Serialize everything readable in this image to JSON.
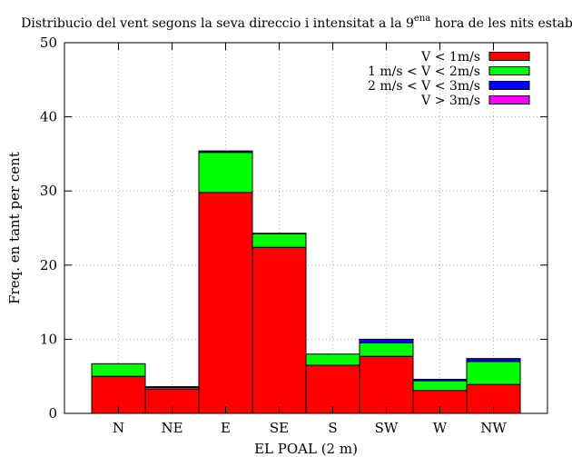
{
  "chart_data": {
    "type": "bar",
    "stacked": true,
    "title_main": "Distribucio del vent segons la seva direccio i intensitat a la 9",
    "title_sup": "ena",
    "title_tail": " hora de les nits estables",
    "xlabel": "EL POAL (2 m)",
    "ylabel": "Freq. en tant per cent",
    "ylim": [
      0,
      50
    ],
    "yticks": [
      0,
      10,
      20,
      30,
      40,
      50
    ],
    "grid": true,
    "legend_position": "top-right",
    "categories": [
      "N",
      "NE",
      "E",
      "SE",
      "S",
      "SW",
      "W",
      "NW"
    ],
    "series": [
      {
        "name": "V < 1m/s",
        "color": "#ff0000",
        "values": [
          5.0,
          3.3,
          29.8,
          22.4,
          6.5,
          7.7,
          3.1,
          3.9
        ]
      },
      {
        "name": "1 m/s < V < 2m/s",
        "color": "#00ff00",
        "values": [
          1.7,
          0.2,
          5.4,
          1.8,
          1.5,
          1.8,
          1.3,
          3.1
        ]
      },
      {
        "name": "2 m/s < V < 3m/s",
        "color": "#0000ff",
        "values": [
          0.0,
          0.1,
          0.2,
          0.1,
          0.0,
          0.5,
          0.2,
          0.4
        ]
      },
      {
        "name": "V > 3m/s",
        "color": "#ff00ff",
        "values": [
          0.0,
          0.0,
          0.0,
          0.0,
          0.0,
          0.0,
          0.0,
          0.0
        ]
      }
    ]
  }
}
